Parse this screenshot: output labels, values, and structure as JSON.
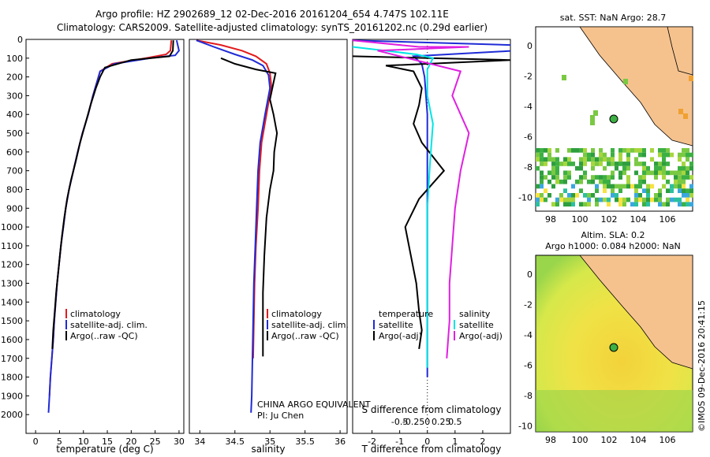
{
  "header": {
    "line1": "Argo profile: HZ 2902689_12 02-Dec-2016 20161204_654 4.747S 102.11E",
    "line2": "Climatology: CARS2009. Satellite-adjusted climatology: synTS_20161202.nc (0.29d earlier)"
  },
  "colors": {
    "climatology": "#e31a1c",
    "satellite": "#1f2bd6",
    "argo": "#000000",
    "sat_S": "#00e5e5",
    "argo_S": "#e020e0",
    "land": "#f5c28e"
  },
  "chart_data": [
    {
      "type": "line",
      "name": "temperature",
      "xlabel": "temperature (deg C)",
      "ylabel": "",
      "xlim": [
        -2,
        31
      ],
      "ylim": [
        2100,
        0
      ],
      "xticks": [
        0,
        5,
        10,
        15,
        20,
        25,
        30
      ],
      "yticks": [
        0,
        100,
        200,
        300,
        400,
        500,
        600,
        700,
        800,
        900,
        1000,
        1100,
        1200,
        1300,
        1400,
        1500,
        1600,
        1700,
        1800,
        1900,
        2000
      ],
      "legend": [
        "climatology",
        "satellite-adj. clim.",
        "Argo(..raw -QC)"
      ],
      "series": [
        {
          "name": "climatology",
          "color": "#e31a1c",
          "points": [
            [
              28.4,
              5
            ],
            [
              28.2,
              60
            ],
            [
              27.3,
              80
            ],
            [
              23,
              100
            ],
            [
              16,
              130
            ],
            [
              13.5,
              170
            ],
            [
              12.8,
              230
            ],
            [
              12,
              300
            ],
            [
              11,
              400
            ],
            [
              9.8,
              500
            ],
            [
              8.8,
              600
            ],
            [
              7.9,
              700
            ],
            [
              7,
              800
            ],
            [
              6.3,
              900
            ],
            [
              5.8,
              1000
            ],
            [
              5.3,
              1100
            ],
            [
              4.9,
              1200
            ],
            [
              4.5,
              1300
            ],
            [
              4.2,
              1400
            ],
            [
              3.9,
              1500
            ],
            [
              3.7,
              1600
            ],
            [
              3.4,
              1700
            ],
            [
              3.1,
              1800
            ],
            [
              2.9,
              1900
            ]
          ]
        },
        {
          "name": "satellite-adj. clim.",
          "color": "#1f2bd6",
          "points": [
            [
              29.5,
              5
            ],
            [
              30,
              60
            ],
            [
              29.2,
              85
            ],
            [
              24,
              100
            ],
            [
              16.5,
              130
            ],
            [
              13.5,
              170
            ],
            [
              12.8,
              230
            ],
            [
              12,
              300
            ],
            [
              11,
              400
            ],
            [
              9.8,
              500
            ],
            [
              8.8,
              600
            ],
            [
              7.9,
              700
            ],
            [
              7,
              800
            ],
            [
              6.3,
              900
            ],
            [
              5.8,
              1000
            ],
            [
              5.3,
              1100
            ],
            [
              4.9,
              1200
            ],
            [
              4.5,
              1300
            ],
            [
              4.2,
              1400
            ],
            [
              3.9,
              1500
            ],
            [
              3.7,
              1600
            ],
            [
              3.4,
              1700
            ],
            [
              3.1,
              1800
            ],
            [
              2.9,
              1900
            ],
            [
              2.7,
              1990
            ]
          ]
        },
        {
          "name": "Argo(..raw -QC)",
          "color": "#000000",
          "points": [
            [
              28.8,
              5
            ],
            [
              28.7,
              60
            ],
            [
              28,
              90
            ],
            [
              20,
              110
            ],
            [
              14.5,
              150
            ],
            [
              13.5,
              200
            ],
            [
              12.6,
              260
            ],
            [
              11.5,
              350
            ],
            [
              10.4,
              450
            ],
            [
              9.3,
              550
            ],
            [
              8.4,
              650
            ],
            [
              7.4,
              750
            ],
            [
              6.6,
              850
            ],
            [
              6,
              950
            ],
            [
              5.5,
              1050
            ],
            [
              5.1,
              1150
            ],
            [
              4.7,
              1250
            ],
            [
              4.3,
              1350
            ],
            [
              4,
              1450
            ],
            [
              3.7,
              1550
            ],
            [
              3.5,
              1650
            ]
          ]
        }
      ]
    },
    {
      "type": "line",
      "name": "salinity",
      "xlabel": "salinity",
      "ylabel": "",
      "xlim": [
        33.85,
        36.1
      ],
      "ylim": [
        2100,
        0
      ],
      "xticks": [
        34,
        34.5,
        35,
        35.5,
        36
      ],
      "legend": [
        "climatology",
        "satellite-adj. clim.",
        "Argo(..raw -QC)"
      ],
      "annotation": [
        "CHINA ARGO EQUIVALENT",
        "PI: Ju Chen"
      ],
      "series": [
        {
          "name": "climatology",
          "color": "#e31a1c",
          "points": [
            [
              33.95,
              5
            ],
            [
              34.3,
              30
            ],
            [
              34.6,
              60
            ],
            [
              34.8,
              90
            ],
            [
              34.95,
              130
            ],
            [
              35.0,
              180
            ],
            [
              35.02,
              250
            ],
            [
              34.95,
              400
            ],
            [
              34.88,
              550
            ],
            [
              34.85,
              700
            ],
            [
              34.83,
              900
            ],
            [
              34.8,
              1100
            ],
            [
              34.78,
              1300
            ],
            [
              34.77,
              1500
            ],
            [
              34.76,
              1700
            ]
          ]
        },
        {
          "name": "satellite-adj. clim.",
          "color": "#1f2bd6",
          "points": [
            [
              33.95,
              5
            ],
            [
              34.2,
              40
            ],
            [
              34.5,
              80
            ],
            [
              34.75,
              110
            ],
            [
              34.9,
              140
            ],
            [
              34.98,
              190
            ],
            [
              35.0,
              260
            ],
            [
              34.93,
              400
            ],
            [
              34.86,
              550
            ],
            [
              34.83,
              700
            ],
            [
              34.81,
              900
            ],
            [
              34.79,
              1100
            ],
            [
              34.77,
              1300
            ],
            [
              34.76,
              1500
            ],
            [
              34.75,
              1700
            ],
            [
              34.74,
              1900
            ],
            [
              34.73,
              1990
            ]
          ]
        },
        {
          "name": "Argo(..raw -QC)",
          "color": "#000000",
          "points": [
            [
              34.3,
              100
            ],
            [
              34.5,
              130
            ],
            [
              34.8,
              160
            ],
            [
              35.08,
              180
            ],
            [
              35.05,
              230
            ],
            [
              35.0,
              320
            ],
            [
              35.05,
              400
            ],
            [
              35.1,
              500
            ],
            [
              35.06,
              600
            ],
            [
              35.05,
              700
            ],
            [
              35.0,
              800
            ],
            [
              34.95,
              950
            ],
            [
              34.92,
              1150
            ],
            [
              34.9,
              1350
            ],
            [
              34.9,
              1550
            ],
            [
              34.9,
              1690
            ]
          ]
        }
      ]
    },
    {
      "type": "line",
      "name": "difference",
      "xlabel": "T difference from climatology",
      "x2label": "S difference from climatology",
      "xlim": [
        -2.7,
        3
      ],
      "ylim": [
        2100,
        0
      ],
      "xticks": [
        -2,
        -1,
        0,
        1,
        2
      ],
      "x2ticks": [
        "-0.5",
        "-0.25",
        "0",
        "0.25",
        "0.5"
      ],
      "legend": {
        "temperature": [
          "satellite",
          "Argo(-adj)"
        ],
        "salinity": [
          "satellite",
          "Argo(-adj)"
        ]
      },
      "series": [
        {
          "name": "T satellite",
          "color": "#1f2bd6",
          "points": [
            [
              -2.7,
              5
            ],
            [
              3,
              30
            ],
            [
              3.2,
              60
            ],
            [
              -0.5,
              90
            ],
            [
              -0.2,
              130
            ],
            [
              -0.1,
              200
            ],
            [
              0,
              400
            ],
            [
              0,
              800
            ],
            [
              0,
              1200
            ],
            [
              0,
              1600
            ],
            [
              0,
              1800
            ]
          ]
        },
        {
          "name": "T Argo",
          "color": "#000000",
          "points": [
            [
              -2.7,
              90
            ],
            [
              3,
              110
            ],
            [
              -1.5,
              140
            ],
            [
              -0.5,
              170
            ],
            [
              -0.2,
              260
            ],
            [
              -0.3,
              350
            ],
            [
              -0.5,
              450
            ],
            [
              -0.2,
              550
            ],
            [
              0.6,
              700
            ],
            [
              -0.3,
              850
            ],
            [
              -0.8,
              1000
            ],
            [
              -0.6,
              1150
            ],
            [
              -0.4,
              1300
            ],
            [
              -0.3,
              1450
            ],
            [
              -0.2,
              1550
            ],
            [
              -0.3,
              1650
            ]
          ]
        },
        {
          "name": "S satellite",
          "color": "#00e5e5",
          "points": [
            [
              -2.7,
              40
            ],
            [
              -0.4,
              80
            ],
            [
              0.2,
              100
            ],
            [
              0,
              160
            ],
            [
              0,
              300
            ],
            [
              0.2,
              450
            ],
            [
              0.1,
              650
            ],
            [
              0,
              900
            ],
            [
              0,
              1200
            ],
            [
              0,
              1500
            ],
            [
              0,
              1750
            ]
          ]
        },
        {
          "name": "S Argo",
          "color": "#e020e0",
          "points": [
            [
              -2.7,
              5
            ],
            [
              -0.3,
              40
            ],
            [
              1.5,
              40
            ],
            [
              -1.8,
              60
            ],
            [
              1.2,
              170
            ],
            [
              0.9,
              300
            ],
            [
              1.5,
              500
            ],
            [
              1.2,
              700
            ],
            [
              1.0,
              900
            ],
            [
              0.9,
              1100
            ],
            [
              0.8,
              1300
            ],
            [
              0.8,
              1500
            ],
            [
              0.7,
              1700
            ]
          ]
        }
      ]
    }
  ],
  "maps": {
    "top": {
      "title": "sat. SST: NaN Argo: 28.7",
      "xticks": [
        "98",
        "100",
        "102",
        "104",
        "106"
      ],
      "yticks": [
        "0",
        "-2",
        "-4",
        "-6",
        "-8",
        "-10"
      ]
    },
    "bottom": {
      "title1": "Altim. SLA: 0.2",
      "title2": "Argo h1000: 0.084 h2000: NaN",
      "xticks": [
        "98",
        "100",
        "102",
        "104",
        "106"
      ],
      "yticks": [
        "0",
        "-2",
        "-4",
        "-6",
        "-8",
        "-10"
      ]
    }
  },
  "footer_vertical": "©IMOS 09-Dec-2016 20:41:15"
}
